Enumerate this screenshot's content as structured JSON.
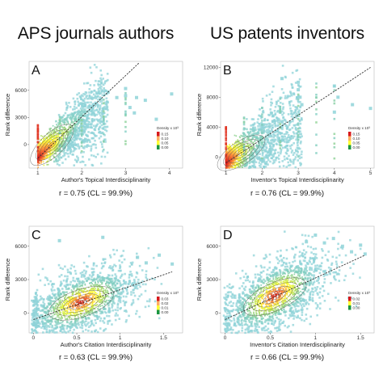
{
  "column_titles": {
    "left": "APS journals authors",
    "right": "US patents inventors"
  },
  "colors": {
    "high": "#d7191c",
    "mid_high": "#fd8d3c",
    "mid": "#ffff33",
    "mid_low": "#a6d96a",
    "low": "#7fcdbb",
    "sparse": "#8fd3d8"
  },
  "legend_colors": [
    "#d7191c",
    "#fdae61",
    "#ffff33",
    "#1a9641"
  ],
  "chart_data": [
    {
      "id": "A",
      "type": "scatter",
      "xlabel": "Author's Topical Interdisciplinarity",
      "ylabel": "Rank difference",
      "xlim": [
        0.8,
        4.3
      ],
      "ylim": [
        -2600,
        9200
      ],
      "xticks": [
        1,
        2,
        3,
        4
      ],
      "yticks": [
        0,
        3000,
        6000
      ],
      "fit_line": [
        [
          1.0,
          -1500
        ],
        [
          3.3,
          9000
        ]
      ],
      "cloud": {
        "x_min": 1.0,
        "x_max": 2.6,
        "x_skew": 1.8,
        "y_spread": 3200,
        "y_sigma_x": 0.45,
        "y_sigma": 1400
      },
      "outliers": [
        [
          3.0,
          5400
        ],
        [
          3.1,
          4100
        ],
        [
          3.2,
          3500
        ],
        [
          3.25,
          5200
        ],
        [
          3.45,
          4900
        ],
        [
          3.7,
          2800
        ],
        [
          4.05,
          5600
        ],
        [
          2.6,
          5800
        ],
        [
          2.8,
          5200
        ],
        [
          3.0,
          6200
        ]
      ],
      "vertical_clusters": [
        1.0,
        1.5,
        2.0,
        2.5,
        3.0
      ],
      "legend": {
        "title": "Density x 10³",
        "labels": [
          "0.15",
          "0.10",
          "0.05",
          "0.00"
        ]
      },
      "r_text": "r = 0.75 (CL = 99.9%)"
    },
    {
      "id": "B",
      "type": "scatter",
      "xlabel": "Inventor's Topical Interdisciplinarity",
      "ylabel": "Rank difference",
      "xlim": [
        0.85,
        5.1
      ],
      "ylim": [
        -1500,
        12800
      ],
      "xticks": [
        1,
        2,
        3,
        4,
        5
      ],
      "yticks": [
        0,
        4000,
        8000,
        12000
      ],
      "fit_line": [
        [
          1.0,
          -800
        ],
        [
          5.0,
          12000
        ]
      ],
      "cloud": {
        "x_min": 1.0,
        "x_max": 3.1,
        "x_skew": 2.0,
        "y_spread": 4500,
        "y_sigma_x": 0.5,
        "y_sigma": 1800
      },
      "outliers": [
        [
          3.0,
          10000
        ],
        [
          3.0,
          9000
        ],
        [
          3.05,
          8000
        ],
        [
          3.1,
          7000
        ],
        [
          4.0,
          9500
        ],
        [
          4.1,
          8000
        ],
        [
          5.0,
          6500
        ],
        [
          4.0,
          6000
        ],
        [
          2.55,
          10500
        ],
        [
          2.3,
          5500
        ],
        [
          4.5,
          7000
        ]
      ],
      "vertical_clusters": [
        1.0,
        1.5,
        2.0,
        2.5,
        3.0,
        3.5,
        4.0
      ],
      "legend": {
        "title": "Density x 10³",
        "labels": [
          "0.15",
          "0.10",
          "0.05",
          "0.00"
        ]
      },
      "r_text": "r = 0.76 (CL = 99.9%)"
    },
    {
      "id": "C",
      "type": "scatter",
      "xlabel": "Author's Citation Interdisciplinarity",
      "ylabel": "Rank difference",
      "xlim": [
        -0.05,
        1.72
      ],
      "ylim": [
        -1800,
        7800
      ],
      "xticks": [
        0.0,
        0.5,
        1.0,
        1.5
      ],
      "yticks": [
        0,
        3000,
        6000
      ],
      "fit_line": [
        [
          0.0,
          -600
        ],
        [
          1.6,
          3700
        ]
      ],
      "cloud": {
        "x_min": 0.0,
        "x_max": 1.5,
        "x_center": 0.55,
        "x_sigma": 0.33,
        "y_spread": 1600,
        "y_sigma": 1700
      },
      "outliers": [
        [
          1.2,
          5000
        ],
        [
          1.3,
          4500
        ],
        [
          1.45,
          5200
        ],
        [
          1.6,
          4400
        ],
        [
          0.3,
          6500
        ],
        [
          0.8,
          6800
        ]
      ],
      "legend": {
        "title": "Density x 10³",
        "labels": [
          "0.03",
          "0.02",
          "0.01",
          "0.00"
        ]
      },
      "r_text": "r = 0.63 (CL = 99.9%)"
    },
    {
      "id": "D",
      "type": "scatter",
      "xlabel": "Inventor's Citation Interdisciplinarity",
      "ylabel": "Rank difference",
      "xlim": [
        -0.05,
        1.65
      ],
      "ylim": [
        -1800,
        7800
      ],
      "xticks": [
        0.0,
        0.5,
        1.0,
        1.5
      ],
      "yticks": [
        0,
        3000,
        6000
      ],
      "fit_line": [
        [
          0.0,
          -600
        ],
        [
          1.55,
          5200
        ]
      ],
      "cloud": {
        "x_min": 0.0,
        "x_max": 1.5,
        "x_center": 0.55,
        "x_sigma": 0.3,
        "y_spread": 2200,
        "y_sigma": 1900
      },
      "outliers": [
        [
          1.1,
          6300
        ],
        [
          1.2,
          6700
        ],
        [
          1.3,
          6000
        ],
        [
          1.4,
          5500
        ],
        [
          1.0,
          7000
        ],
        [
          1.5,
          6100
        ],
        [
          0.9,
          6400
        ],
        [
          1.55,
          5300
        ]
      ],
      "legend": {
        "title": "Density x 10³",
        "labels": [
          "0.02",
          "0.01",
          "0.00"
        ]
      },
      "r_text": "r = 0.66 (CL = 99.9%)"
    }
  ]
}
